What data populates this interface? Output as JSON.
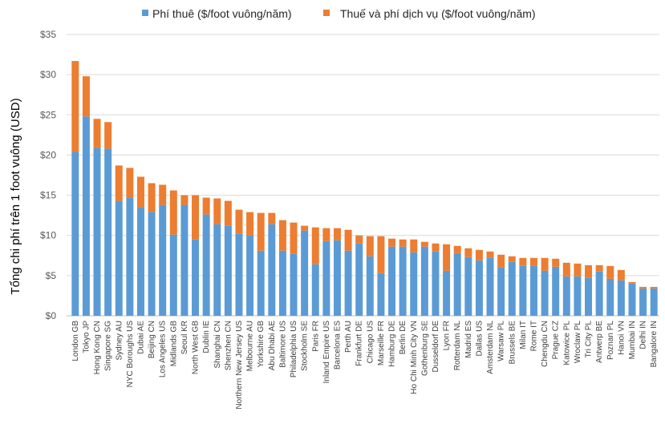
{
  "chart_data": {
    "type": "bar",
    "stacked": true,
    "title": "",
    "xlabel": "",
    "ylabel": "Tổng chi phí trên 1 foot vuông (USD)",
    "ylim": [
      0,
      35
    ],
    "yticks": [
      "$0",
      "$5",
      "$10",
      "$15",
      "$20",
      "$25",
      "$30",
      "$35"
    ],
    "ytick_values": [
      0,
      5,
      10,
      15,
      20,
      25,
      30,
      35
    ],
    "grid": true,
    "legend_position": "top",
    "categories": [
      "London GB",
      "Tokyo JP",
      "Hong Kong CN",
      "Singapore SG",
      "Sydney AU",
      "NYC Boroughs US",
      "Dubai AE",
      "Beijing CN",
      "Los Angeles US",
      "Midlands GB",
      "Seoul KR",
      "North West GB",
      "Dublin IE",
      "Shanghai CN",
      "Shenzhen CN",
      "Northern New Jersey US",
      "Melbourne AU",
      "Yorkshire GB",
      "Abu Dhabi AE",
      "Baltimore US",
      "Philadelphia US",
      "Stockholm SE",
      "Paris FR",
      "Inland Empire US",
      "Barcelona ES",
      "Perth AU",
      "Frankfurt DE",
      "Chicago US",
      "Marseille FR",
      "Hamburg DE",
      "Berlin DE",
      "Ho Chi Minh City VN",
      "Gothenburg SE",
      "Dusseldorf DE",
      "Lyon FR",
      "Rotterdam NL",
      "Madrid ES",
      "Dallas US",
      "Amsterdam NL",
      "Warsaw PL",
      "Brussels BE",
      "Milan IT",
      "Rome IT",
      "Chengdu CN",
      "Prague CZ",
      "Katowice PL",
      "Wroclaw PL",
      "Tri City PL",
      "Antwerp BE",
      "Poznan PL",
      "Hanoi VN",
      "Mumbai IN",
      "Delhi IN",
      "Bangalore IN"
    ],
    "series": [
      {
        "name": "Phí thuê ($/foot vuông/năm)",
        "color": "#5b9bd5",
        "values": [
          20.4,
          24.8,
          20.9,
          20.8,
          14.3,
          14.7,
          13.5,
          12.9,
          13.8,
          10.1,
          13.8,
          9.5,
          12.6,
          11.4,
          11.2,
          10.2,
          10.0,
          8.1,
          11.4,
          8.1,
          7.7,
          10.6,
          6.4,
          9.3,
          9.4,
          8.1,
          9.0,
          7.4,
          5.3,
          8.6,
          8.6,
          7.9,
          8.6,
          8.0,
          5.6,
          7.8,
          7.3,
          6.9,
          7.2,
          6.0,
          6.7,
          6.2,
          6.2,
          5.6,
          6.1,
          4.9,
          4.9,
          4.7,
          5.5,
          4.6,
          4.4,
          4.0,
          3.4,
          3.4
        ]
      },
      {
        "name": "Thuế và phí dịch vụ ($/foot vuông/năm)",
        "color": "#ed7d31",
        "values": [
          11.3,
          5.0,
          3.6,
          3.3,
          4.4,
          3.7,
          3.8,
          3.6,
          2.5,
          5.5,
          1.2,
          5.5,
          2.1,
          3.2,
          3.1,
          3.0,
          2.9,
          4.7,
          1.4,
          3.8,
          3.9,
          0.6,
          4.6,
          1.6,
          1.5,
          2.6,
          1.0,
          2.5,
          4.6,
          1.0,
          0.9,
          1.6,
          0.6,
          1.0,
          3.3,
          0.9,
          1.1,
          1.3,
          0.8,
          1.6,
          0.7,
          1.0,
          1.0,
          1.6,
          1.0,
          1.7,
          1.6,
          1.6,
          0.8,
          1.6,
          1.3,
          0.2,
          0.2,
          0.2
        ]
      }
    ]
  }
}
